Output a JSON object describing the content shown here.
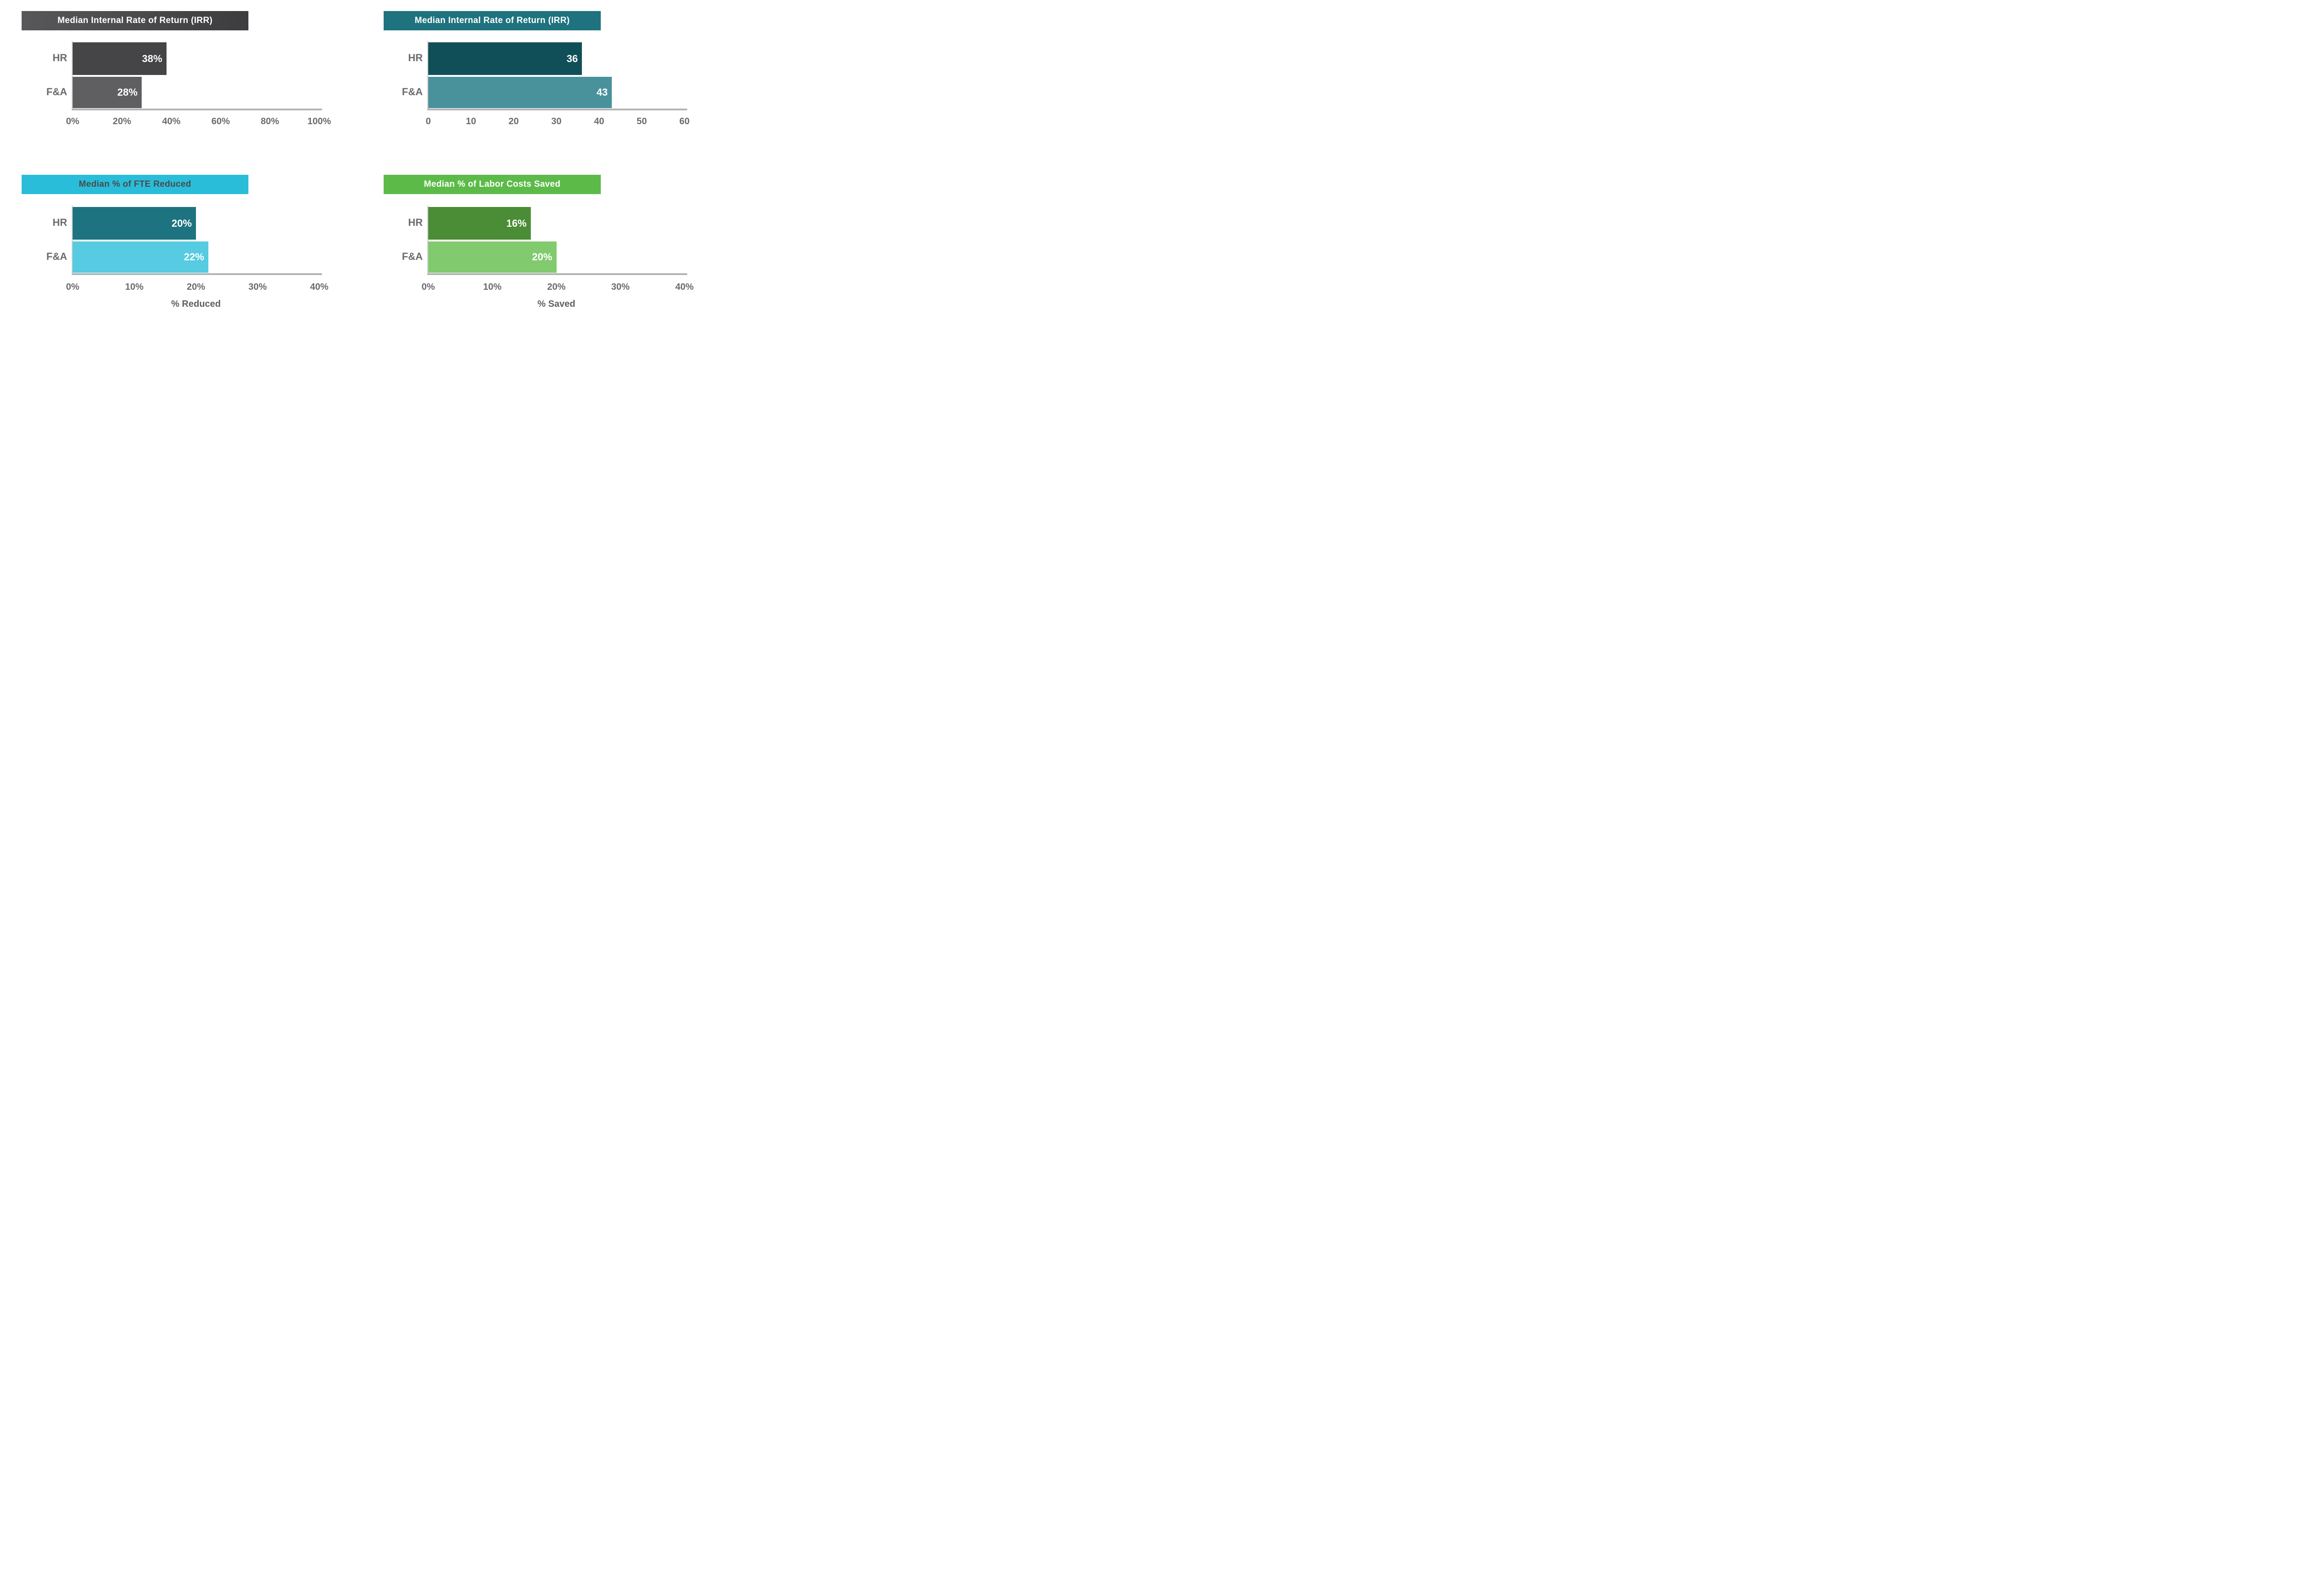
{
  "page": {
    "background": "#ffffff"
  },
  "axis_style": {
    "y_axis_line": "#c9cbca",
    "baseline": "#b3b5b4",
    "tick_text": "#6b6b6e",
    "category_text": "#6b6b6e"
  },
  "chart_data": [
    {
      "type": "bar",
      "orientation": "horizontal",
      "title": "Median Internal Rate of Return (IRR)",
      "categories": [
        "HR",
        "F&A"
      ],
      "values": [
        38,
        28
      ],
      "value_labels": [
        "38%",
        "28%"
      ],
      "xlim": [
        0,
        100
      ],
      "ticks": [
        "0%",
        "20%",
        "40%",
        "60%",
        "80%",
        "100%"
      ],
      "xlabel": "",
      "grid": false,
      "legend": false,
      "colors": {
        "title_bg": [
          "#58585b",
          "#3d3d3f"
        ],
        "title_text": "#ffffff",
        "bars": [
          "#454547",
          "#5f5f62"
        ],
        "value_text": "#ffffff"
      }
    },
    {
      "type": "bar",
      "orientation": "horizontal",
      "title": "Median Internal Rate of Return (IRR)",
      "categories": [
        "HR",
        "F&A"
      ],
      "values": [
        36,
        43
      ],
      "value_labels": [
        "36",
        "43"
      ],
      "xlim": [
        0,
        60
      ],
      "ticks": [
        "0",
        "10",
        "20",
        "30",
        "40",
        "50",
        "60"
      ],
      "xlabel": "",
      "grid": false,
      "legend": false,
      "colors": {
        "title_bg": [
          "#1e737f"
        ],
        "title_text": "#ffffff",
        "bars": [
          "#114f58",
          "#49929b"
        ],
        "value_text": "#ffffff"
      }
    },
    {
      "type": "bar",
      "orientation": "horizontal",
      "title": "Median % of FTE Reduced",
      "categories": [
        "HR",
        "F&A"
      ],
      "values": [
        20,
        22
      ],
      "value_labels": [
        "20%",
        "22%"
      ],
      "xlim": [
        0,
        40
      ],
      "ticks": [
        "0%",
        "10%",
        "20%",
        "30%",
        "40%"
      ],
      "xlabel": "% Reduced",
      "grid": false,
      "legend": false,
      "colors": {
        "title_bg": [
          "#29bdd9"
        ],
        "title_text": "#4a4a4c",
        "bars": [
          "#1d7380",
          "#56cbe1"
        ],
        "value_text": "#ffffff"
      }
    },
    {
      "type": "bar",
      "orientation": "horizontal",
      "title": "Median % of Labor Costs Saved",
      "categories": [
        "HR",
        "F&A"
      ],
      "values": [
        16,
        20
      ],
      "value_labels": [
        "16%",
        "20%"
      ],
      "xlim": [
        0,
        40
      ],
      "ticks": [
        "0%",
        "10%",
        "20%",
        "30%",
        "40%"
      ],
      "xlabel": "% Saved",
      "grid": false,
      "legend": false,
      "colors": {
        "title_bg": [
          "#5cba49"
        ],
        "title_text": "#ffffff",
        "bars": [
          "#4b8d36",
          "#81ca6d"
        ],
        "value_text": "#ffffff"
      }
    }
  ]
}
